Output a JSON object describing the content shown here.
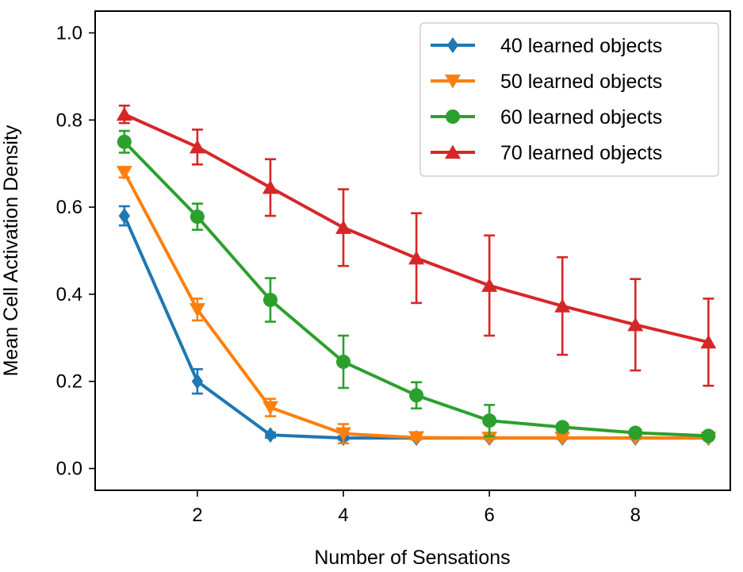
{
  "chart_data": {
    "type": "line",
    "xlabel": "Number of Sensations",
    "ylabel": "Mean Cell Activation Density",
    "xlim": [
      0.6,
      9.3
    ],
    "ylim": [
      -0.05,
      1.05
    ],
    "xticks": [
      2,
      4,
      6,
      8
    ],
    "yticks": [
      0.0,
      0.2,
      0.4,
      0.6,
      0.8,
      1.0
    ],
    "xtick_labels": [
      "2",
      "4",
      "6",
      "8"
    ],
    "ytick_labels": [
      "0.0",
      "0.2",
      "0.4",
      "0.6",
      "0.8",
      "1.0"
    ],
    "grid": false,
    "legend": "top-right",
    "x": [
      1,
      2,
      3,
      4,
      5,
      6,
      7,
      8,
      9
    ],
    "series": [
      {
        "name": "40 learned objects",
        "color": "#1f77b4",
        "marker": "diamond",
        "values": [
          0.58,
          0.2,
          0.077,
          0.07,
          0.07,
          0.07,
          0.07,
          0.07,
          0.07
        ],
        "errors": [
          0.022,
          0.028,
          0.006,
          0.004,
          0.003,
          0.002,
          0.002,
          0.002,
          0.002
        ]
      },
      {
        "name": "50 learned objects",
        "color": "#ff7f0e",
        "marker": "triangle-down",
        "values": [
          0.68,
          0.365,
          0.14,
          0.08,
          0.071,
          0.07,
          0.07,
          0.07,
          0.07
        ],
        "errors": [
          0.012,
          0.025,
          0.02,
          0.022,
          0.005,
          0.003,
          0.003,
          0.003,
          0.003
        ]
      },
      {
        "name": "60 learned objects",
        "color": "#2ca02c",
        "marker": "circle",
        "values": [
          0.75,
          0.578,
          0.387,
          0.245,
          0.168,
          0.11,
          0.095,
          0.082,
          0.075
        ],
        "errors": [
          0.025,
          0.03,
          0.05,
          0.06,
          0.03,
          0.036,
          0.006,
          0.005,
          0.004
        ]
      },
      {
        "name": "70 learned objects",
        "color": "#d62728",
        "marker": "triangle-up",
        "values": [
          0.813,
          0.738,
          0.645,
          0.553,
          0.483,
          0.42,
          0.373,
          0.33,
          0.29
        ],
        "errors": [
          0.02,
          0.04,
          0.065,
          0.088,
          0.103,
          0.115,
          0.112,
          0.105,
          0.1
        ]
      }
    ]
  }
}
